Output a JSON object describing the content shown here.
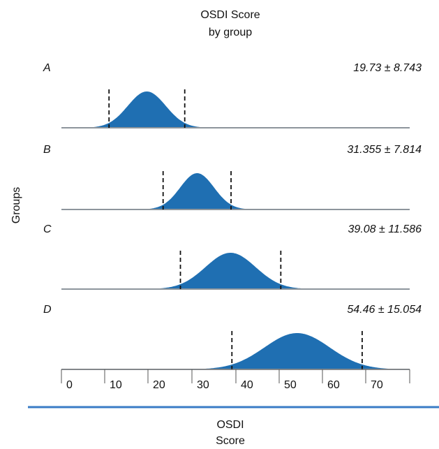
{
  "chart_data": {
    "type": "area",
    "title_lines": [
      "OSDI Score",
      "by group"
    ],
    "xlabel_lines": [
      "OSDI",
      "Score"
    ],
    "ylabel": "Groups",
    "xlim": [
      0,
      80
    ],
    "x_ticks": [
      "0",
      "10",
      "20",
      "30",
      "40",
      "50",
      "60",
      "70"
    ],
    "colors": {
      "fill": "#1f6fb2",
      "baseline": "#8d959c",
      "rule": "#3a7cc6"
    },
    "series": [
      {
        "name": "A",
        "mean": 19.73,
        "sd": 8.743,
        "label": "19.73 ± 8.743",
        "interval": [
          11.0,
          28.5
        ]
      },
      {
        "name": "B",
        "mean": 31.355,
        "sd": 7.814,
        "label": "31.355 ± 7.814",
        "interval": [
          23.5,
          39.2
        ]
      },
      {
        "name": "C",
        "mean": 39.08,
        "sd": 11.586,
        "label": "39.08 ± 11.586",
        "interval": [
          27.5,
          50.7
        ]
      },
      {
        "name": "D",
        "mean": 54.46,
        "sd": 15.054,
        "label": "54.46 ± 15.054",
        "interval": [
          39.4,
          69.5
        ]
      }
    ]
  }
}
